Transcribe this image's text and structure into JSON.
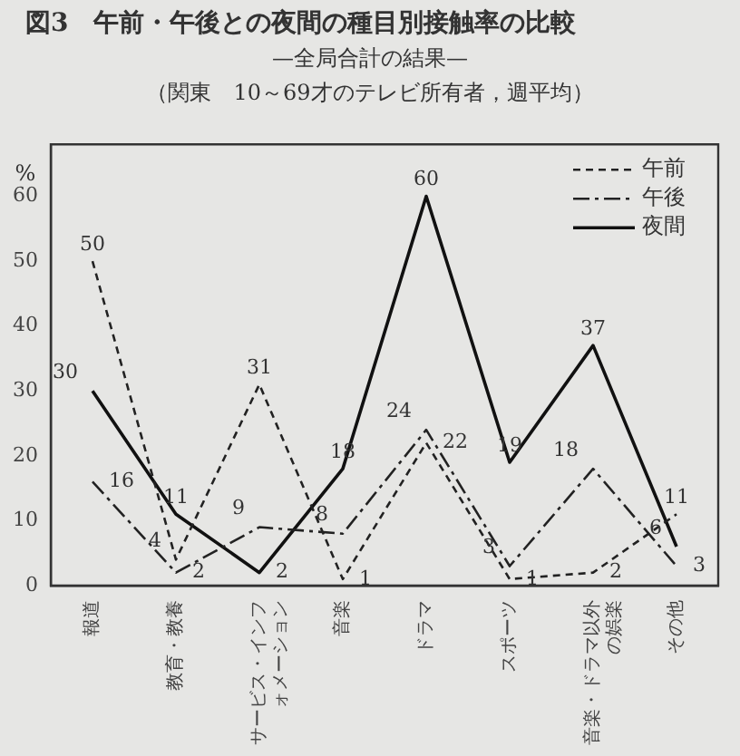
{
  "chart_data": {
    "type": "line",
    "title": "図3　午前・午後との夜間の種目別接触率の比較",
    "subtitle": "—全局合計の結果—",
    "annotations": [
      "（関東　10～69才のテレビ所有者，週平均）"
    ],
    "ylabel": "%",
    "categories": [
      "報道",
      "教育・教養",
      "サービス・インフォメーション",
      "音楽",
      "ドラマ",
      "スポーツ",
      "音楽・ドラマ以外の娯楽",
      "その他"
    ],
    "series": [
      {
        "name": "午前",
        "color": "#222222",
        "line_style": "dotted",
        "values": [
          50,
          4,
          31,
          1,
          22,
          1,
          2,
          11
        ]
      },
      {
        "name": "午後",
        "color": "#222222",
        "line_style": "dashed",
        "values": [
          16,
          2,
          9,
          8,
          24,
          3,
          18,
          3
        ]
      },
      {
        "name": "夜間",
        "color": "#111111",
        "line_style": "solid",
        "values": [
          30,
          11,
          2,
          18,
          60,
          19,
          37,
          6
        ]
      }
    ],
    "ylim": [
      0,
      68
    ],
    "yticks": [
      0,
      10,
      20,
      30,
      40,
      50,
      60
    ],
    "grid": false,
    "legend": "top right",
    "data_labels": true,
    "marker": "none"
  }
}
